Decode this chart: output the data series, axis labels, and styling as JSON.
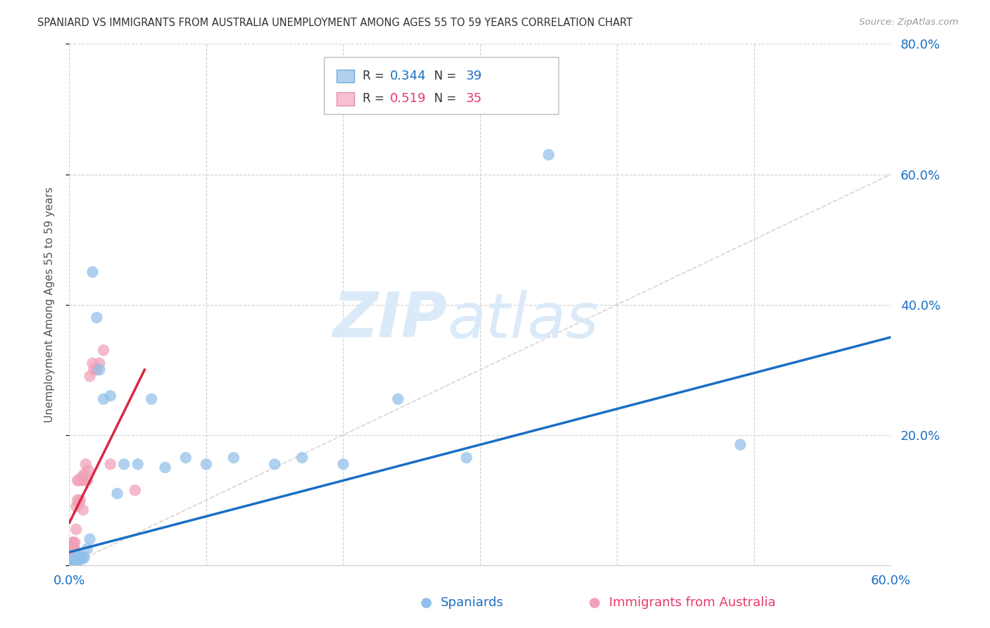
{
  "title": "SPANIARD VS IMMIGRANTS FROM AUSTRALIA UNEMPLOYMENT AMONG AGES 55 TO 59 YEARS CORRELATION CHART",
  "source": "Source: ZipAtlas.com",
  "ylabel": "Unemployment Among Ages 55 to 59 years",
  "xlim": [
    0.0,
    0.6
  ],
  "ylim": [
    0.0,
    0.8
  ],
  "scatter_blue": "#90c0ea",
  "scatter_pink": "#f0a0b8",
  "blue_line_color": "#1a6fc4",
  "pink_line_color": "#d82840",
  "diag_color": "#d8c8c8",
  "background": "#ffffff",
  "grid_color": "#cccccc",
  "tick_color": "#1a6fc4",
  "title_color": "#333333",
  "source_color": "#999999",
  "watermark_color": "#daeaf8",
  "legend_R1": "0.344",
  "legend_N1": "39",
  "legend_R2": "0.519",
  "legend_N2": "35",
  "legend_label1": "Spaniards",
  "legend_label2": "Immigrants from Australia",
  "sp_x": [
    0.001,
    0.002,
    0.002,
    0.003,
    0.003,
    0.004,
    0.004,
    0.005,
    0.005,
    0.006,
    0.006,
    0.007,
    0.007,
    0.008,
    0.009,
    0.01,
    0.011,
    0.013,
    0.015,
    0.017,
    0.02,
    0.022,
    0.025,
    0.03,
    0.035,
    0.04,
    0.05,
    0.06,
    0.07,
    0.085,
    0.1,
    0.12,
    0.15,
    0.17,
    0.2,
    0.24,
    0.29,
    0.35,
    0.49
  ],
  "sp_y": [
    0.005,
    0.004,
    0.007,
    0.003,
    0.008,
    0.005,
    0.01,
    0.004,
    0.008,
    0.006,
    0.012,
    0.008,
    0.015,
    0.01,
    0.013,
    0.01,
    0.012,
    0.025,
    0.04,
    0.45,
    0.38,
    0.3,
    0.255,
    0.26,
    0.11,
    0.155,
    0.155,
    0.255,
    0.15,
    0.165,
    0.155,
    0.165,
    0.155,
    0.165,
    0.155,
    0.255,
    0.165,
    0.63,
    0.185
  ],
  "au_x": [
    0.0,
    0.0,
    0.001,
    0.001,
    0.001,
    0.002,
    0.002,
    0.002,
    0.003,
    0.003,
    0.003,
    0.004,
    0.004,
    0.005,
    0.005,
    0.006,
    0.006,
    0.007,
    0.007,
    0.008,
    0.009,
    0.01,
    0.01,
    0.011,
    0.012,
    0.013,
    0.014,
    0.015,
    0.017,
    0.018,
    0.02,
    0.022,
    0.025,
    0.03,
    0.048
  ],
  "au_y": [
    0.01,
    0.02,
    0.008,
    0.015,
    0.025,
    0.01,
    0.025,
    0.035,
    0.015,
    0.025,
    0.035,
    0.025,
    0.035,
    0.055,
    0.09,
    0.1,
    0.13,
    0.095,
    0.13,
    0.1,
    0.135,
    0.085,
    0.13,
    0.14,
    0.155,
    0.13,
    0.145,
    0.29,
    0.31,
    0.3,
    0.3,
    0.31,
    0.33,
    0.155,
    0.115
  ],
  "sp_trendline": [
    0.0,
    0.6,
    0.02,
    0.35
  ],
  "au_trendline": [
    0.0,
    0.055,
    0.065,
    0.3
  ]
}
